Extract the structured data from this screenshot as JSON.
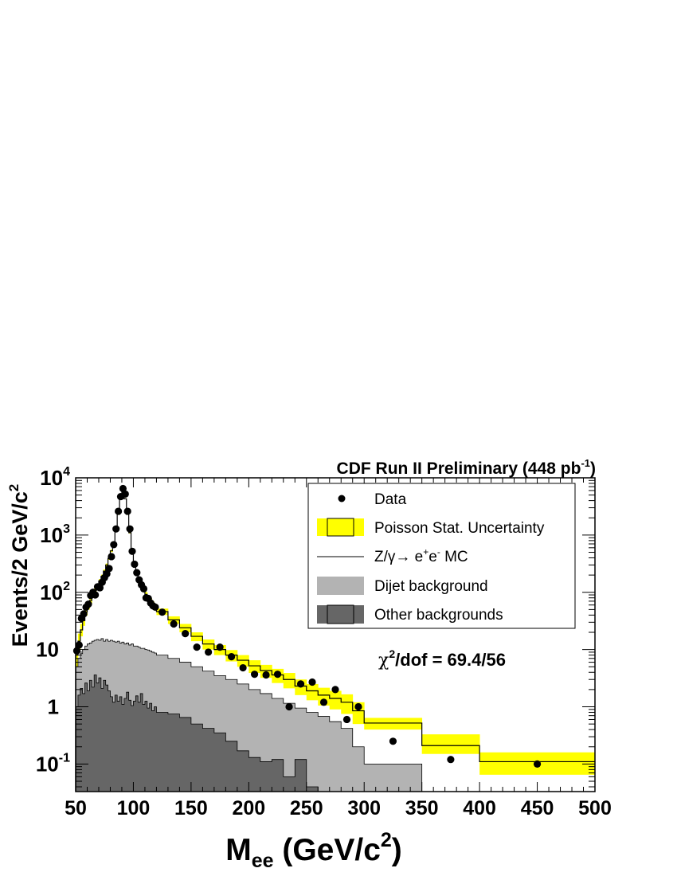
{
  "chart_data": {
    "type": "histogram",
    "title": "CDF Run II Preliminary (448 pb",
    "title_sup": "-1",
    "title_tail": ")",
    "xlabel": {
      "main": "M",
      "sub": "ee",
      "mid": " (GeV/c",
      "sup": "2",
      "tail": ")"
    },
    "ylabel": {
      "main": "Events/2 GeV/c",
      "sup": "2"
    },
    "x_range": [
      50,
      500
    ],
    "y_range": [
      0.033,
      10000
    ],
    "y_scale": "log",
    "x_ticks": [
      {
        "value": 50,
        "label": "50"
      },
      {
        "value": 100,
        "label": "100"
      },
      {
        "value": 150,
        "label": "150"
      },
      {
        "value": 200,
        "label": "200"
      },
      {
        "value": 250,
        "label": "250"
      },
      {
        "value": 300,
        "label": "300"
      },
      {
        "value": 350,
        "label": "350"
      },
      {
        "value": 400,
        "label": "400"
      },
      {
        "value": 450,
        "label": "450"
      },
      {
        "value": 500,
        "label": "500"
      }
    ],
    "y_ticks": [
      {
        "value": 0.1,
        "base": "10",
        "exp": "-1"
      },
      {
        "value": 1,
        "base": "1",
        "exp": ""
      },
      {
        "value": 10,
        "base": "10",
        "exp": ""
      },
      {
        "value": 100,
        "base": "10",
        "exp": "2"
      },
      {
        "value": 1000,
        "base": "10",
        "exp": "3"
      },
      {
        "value": 10000,
        "base": "10",
        "exp": "4"
      }
    ],
    "chi2": {
      "chi": "χ",
      "sup": "2",
      "rest": "/dof = 69.4/56"
    },
    "legend_position": "top-right",
    "legend": [
      {
        "key": "data",
        "label": "Data"
      },
      {
        "key": "stat",
        "label": "Poisson Stat. Uncertainty"
      },
      {
        "key": "mc",
        "label": "Z/γ→ e",
        "sup1": "+",
        "mid": "e",
        "sup2": "-",
        "tail": " MC"
      },
      {
        "key": "dijet",
        "label": "Dijet background"
      },
      {
        "key": "other",
        "label": "Other backgrounds"
      }
    ],
    "colors": {
      "stat": "#ffff00",
      "dijet": "#b3b3b3",
      "other": "#666666",
      "line": "#000000",
      "data": "#000000"
    },
    "mc_bins": [
      [
        50,
        52,
        8
      ],
      [
        52,
        54,
        14
      ],
      [
        54,
        56,
        22
      ],
      [
        56,
        58,
        32
      ],
      [
        58,
        60,
        45
      ],
      [
        60,
        62,
        57
      ],
      [
        62,
        64,
        72
      ],
      [
        64,
        66,
        88
      ],
      [
        66,
        68,
        108
      ],
      [
        68,
        70,
        130
      ],
      [
        70,
        72,
        158
      ],
      [
        72,
        74,
        190
      ],
      [
        74,
        76,
        235
      ],
      [
        76,
        78,
        300
      ],
      [
        78,
        80,
        390
      ],
      [
        80,
        82,
        530
      ],
      [
        82,
        84,
        750
      ],
      [
        84,
        86,
        1250
      ],
      [
        86,
        88,
        2300
      ],
      [
        88,
        90,
        4600
      ],
      [
        90,
        92,
        6200
      ],
      [
        92,
        94,
        4300
      ],
      [
        94,
        96,
        2300
      ],
      [
        96,
        98,
        1100
      ],
      [
        98,
        100,
        560
      ],
      [
        100,
        102,
        330
      ],
      [
        102,
        104,
        225
      ],
      [
        104,
        106,
        170
      ],
      [
        106,
        108,
        135
      ],
      [
        108,
        110,
        110
      ],
      [
        110,
        112,
        92
      ],
      [
        112,
        114,
        80
      ],
      [
        114,
        116,
        70
      ],
      [
        116,
        118,
        62
      ],
      [
        118,
        120,
        56
      ],
      [
        120,
        130,
        46
      ],
      [
        130,
        140,
        33
      ],
      [
        140,
        150,
        24
      ],
      [
        150,
        160,
        17
      ],
      [
        160,
        170,
        12.5
      ],
      [
        170,
        180,
        10
      ],
      [
        180,
        190,
        8
      ],
      [
        190,
        200,
        6.5
      ],
      [
        200,
        210,
        5.2
      ],
      [
        210,
        220,
        4.3
      ],
      [
        220,
        230,
        3.6
      ],
      [
        230,
        240,
        3
      ],
      [
        240,
        250,
        2.3
      ],
      [
        250,
        260,
        1.9
      ],
      [
        260,
        270,
        1.6
      ],
      [
        270,
        280,
        1.4
      ],
      [
        280,
        290,
        1.2
      ],
      [
        290,
        300,
        0.85
      ],
      [
        300,
        350,
        0.52
      ],
      [
        350,
        400,
        0.21
      ],
      [
        400,
        500,
        0.11
      ]
    ],
    "stat_band": [
      [
        50,
        52,
        5,
        12
      ],
      [
        52,
        54,
        10,
        19
      ],
      [
        54,
        56,
        17,
        28
      ],
      [
        56,
        58,
        26,
        39
      ],
      [
        58,
        60,
        39,
        52
      ],
      [
        60,
        62,
        50,
        65
      ],
      [
        62,
        64,
        64,
        80
      ],
      [
        64,
        66,
        80,
        97
      ],
      [
        66,
        68,
        99,
        118
      ],
      [
        68,
        70,
        120,
        141
      ],
      [
        70,
        72,
        146,
        170
      ],
      [
        72,
        74,
        177,
        204
      ],
      [
        74,
        76,
        220,
        251
      ],
      [
        76,
        78,
        283,
        318
      ],
      [
        78,
        80,
        370,
        410
      ],
      [
        80,
        82,
        505,
        555
      ],
      [
        82,
        84,
        720,
        780
      ],
      [
        84,
        86,
        1210,
        1290
      ],
      [
        86,
        88,
        2250,
        2350
      ],
      [
        88,
        90,
        4530,
        4670
      ],
      [
        90,
        92,
        6120,
        6280
      ],
      [
        92,
        94,
        4230,
        4370
      ],
      [
        94,
        96,
        2250,
        2350
      ],
      [
        96,
        98,
        1065,
        1135
      ],
      [
        98,
        100,
        535,
        585
      ],
      [
        100,
        102,
        312,
        348
      ],
      [
        102,
        104,
        210,
        240
      ],
      [
        104,
        106,
        157,
        183
      ],
      [
        106,
        108,
        124,
        146
      ],
      [
        108,
        110,
        100,
        120
      ],
      [
        110,
        112,
        83,
        101
      ],
      [
        112,
        114,
        72,
        88
      ],
      [
        114,
        116,
        62,
        78
      ],
      [
        116,
        118,
        55,
        69
      ],
      [
        118,
        120,
        49,
        63
      ],
      [
        120,
        130,
        40,
        52
      ],
      [
        130,
        140,
        28,
        38
      ],
      [
        140,
        150,
        20,
        28
      ],
      [
        150,
        160,
        14,
        20
      ],
      [
        160,
        170,
        10,
        15
      ],
      [
        170,
        180,
        8,
        12
      ],
      [
        180,
        190,
        6.2,
        9.8
      ],
      [
        190,
        200,
        5,
        8
      ],
      [
        200,
        210,
        3.9,
        6.5
      ],
      [
        210,
        220,
        3.2,
        5.4
      ],
      [
        220,
        230,
        2.6,
        4.6
      ],
      [
        230,
        240,
        2.1,
        3.9
      ],
      [
        240,
        250,
        1.6,
        3
      ],
      [
        250,
        260,
        1.3,
        2.5
      ],
      [
        260,
        270,
        1.05,
        2.15
      ],
      [
        270,
        280,
        0.9,
        1.9
      ],
      [
        280,
        290,
        0.75,
        1.65
      ],
      [
        290,
        300,
        0.5,
        1.2
      ],
      [
        300,
        350,
        0.4,
        0.64
      ],
      [
        350,
        400,
        0.15,
        0.33
      ],
      [
        400,
        500,
        0.065,
        0.16
      ]
    ],
    "dijet_bins": [
      [
        50,
        52,
        5
      ],
      [
        52,
        54,
        7
      ],
      [
        54,
        56,
        8.5
      ],
      [
        56,
        58,
        10
      ],
      [
        58,
        60,
        11.5
      ],
      [
        60,
        62,
        12.5
      ],
      [
        62,
        64,
        13
      ],
      [
        64,
        66,
        14
      ],
      [
        66,
        68,
        14.5
      ],
      [
        68,
        70,
        15
      ],
      [
        70,
        72,
        14.5
      ],
      [
        72,
        74,
        15.5
      ],
      [
        74,
        76,
        14
      ],
      [
        76,
        78,
        15
      ],
      [
        78,
        80,
        14
      ],
      [
        80,
        82,
        14.5
      ],
      [
        82,
        84,
        14
      ],
      [
        84,
        86,
        13.5
      ],
      [
        86,
        88,
        14
      ],
      [
        88,
        90,
        13
      ],
      [
        90,
        92,
        13.5
      ],
      [
        92,
        94,
        12.5
      ],
      [
        94,
        96,
        13
      ],
      [
        96,
        98,
        12
      ],
      [
        98,
        100,
        12.5
      ],
      [
        100,
        102,
        11.5
      ],
      [
        102,
        104,
        11.5
      ],
      [
        104,
        106,
        11
      ],
      [
        106,
        108,
        10.5
      ],
      [
        108,
        110,
        10.5
      ],
      [
        110,
        112,
        10
      ],
      [
        112,
        114,
        9.8
      ],
      [
        114,
        116,
        9.4
      ],
      [
        116,
        118,
        9
      ],
      [
        118,
        120,
        8.7
      ],
      [
        120,
        130,
        8
      ],
      [
        130,
        140,
        7
      ],
      [
        140,
        150,
        6
      ],
      [
        150,
        160,
        5
      ],
      [
        160,
        170,
        4.2
      ],
      [
        170,
        180,
        3.5
      ],
      [
        180,
        190,
        3
      ],
      [
        190,
        200,
        2.5
      ],
      [
        200,
        210,
        2
      ],
      [
        210,
        220,
        1.7
      ],
      [
        220,
        230,
        1.4
      ],
      [
        230,
        240,
        1.15
      ],
      [
        240,
        250,
        0.95
      ],
      [
        250,
        260,
        0.8
      ],
      [
        260,
        270,
        0.68
      ],
      [
        270,
        280,
        0.55
      ],
      [
        280,
        290,
        0.42
      ],
      [
        290,
        300,
        0.2
      ],
      [
        300,
        350,
        0.1
      ],
      [
        350,
        400,
        0.03
      ],
      [
        400,
        500,
        0.03
      ]
    ],
    "other_bins": [
      [
        50,
        52,
        1
      ],
      [
        52,
        54,
        1.6
      ],
      [
        54,
        56,
        2.1
      ],
      [
        56,
        58,
        1.7
      ],
      [
        58,
        60,
        2.6
      ],
      [
        60,
        62,
        1.9
      ],
      [
        62,
        64,
        2.9
      ],
      [
        64,
        66,
        2.2
      ],
      [
        66,
        68,
        3.6
      ],
      [
        68,
        70,
        2.6
      ],
      [
        70,
        72,
        3.2
      ],
      [
        72,
        74,
        2.1
      ],
      [
        74,
        76,
        2.9
      ],
      [
        76,
        78,
        2.4
      ],
      [
        78,
        80,
        1.9
      ],
      [
        80,
        82,
        1.5
      ],
      [
        82,
        84,
        1.2
      ],
      [
        84,
        86,
        1.6
      ],
      [
        86,
        88,
        1.25
      ],
      [
        88,
        90,
        1.5
      ],
      [
        90,
        92,
        1.1
      ],
      [
        92,
        94,
        1.4
      ],
      [
        94,
        96,
        1.8
      ],
      [
        96,
        98,
        1.3
      ],
      [
        98,
        100,
        1.05
      ],
      [
        100,
        102,
        1.25
      ],
      [
        102,
        104,
        1.55
      ],
      [
        104,
        106,
        1.2
      ],
      [
        106,
        108,
        1.7
      ],
      [
        108,
        110,
        1.1
      ],
      [
        110,
        112,
        1.25
      ],
      [
        112,
        114,
        0.95
      ],
      [
        114,
        116,
        1.15
      ],
      [
        116,
        118,
        0.85
      ],
      [
        118,
        120,
        1
      ],
      [
        120,
        130,
        0.8
      ],
      [
        130,
        140,
        0.75
      ],
      [
        140,
        150,
        0.65
      ],
      [
        150,
        160,
        0.5
      ],
      [
        160,
        170,
        0.42
      ],
      [
        170,
        180,
        0.35
      ],
      [
        180,
        190,
        0.25
      ],
      [
        190,
        200,
        0.17
      ],
      [
        200,
        210,
        0.13
      ],
      [
        210,
        220,
        0.11
      ],
      [
        220,
        230,
        0.12
      ],
      [
        230,
        240,
        0.06
      ],
      [
        240,
        250,
        0.12
      ],
      [
        250,
        260,
        0.04
      ],
      [
        260,
        400,
        0.03
      ],
      [
        400,
        500,
        0.03
      ]
    ],
    "data_points": [
      [
        51,
        9.5
      ],
      [
        53,
        12
      ],
      [
        55,
        35
      ],
      [
        57,
        42
      ],
      [
        59,
        55
      ],
      [
        61,
        62
      ],
      [
        63,
        88
      ],
      [
        65,
        100
      ],
      [
        67,
        90
      ],
      [
        69,
        125
      ],
      [
        71,
        120
      ],
      [
        73,
        150
      ],
      [
        75,
        180
      ],
      [
        77,
        210
      ],
      [
        79,
        260
      ],
      [
        81,
        420
      ],
      [
        83,
        680
      ],
      [
        85,
        1280
      ],
      [
        87,
        2600
      ],
      [
        89,
        4700
      ],
      [
        91,
        6500
      ],
      [
        93,
        5200
      ],
      [
        95,
        2600
      ],
      [
        97,
        1280
      ],
      [
        99,
        520
      ],
      [
        101,
        310
      ],
      [
        103,
        220
      ],
      [
        105,
        165
      ],
      [
        107,
        135
      ],
      [
        109,
        115
      ],
      [
        111,
        80
      ],
      [
        113,
        78
      ],
      [
        115,
        65
      ],
      [
        117,
        58
      ],
      [
        119,
        55
      ],
      [
        125,
        45
      ],
      [
        135,
        28
      ],
      [
        145,
        19
      ],
      [
        155,
        11
      ],
      [
        165,
        9
      ],
      [
        175,
        11
      ],
      [
        185,
        7.5
      ],
      [
        195,
        4.8
      ],
      [
        205,
        3.7
      ],
      [
        215,
        3.6
      ],
      [
        225,
        3.7
      ],
      [
        235,
        1
      ],
      [
        245,
        2.5
      ],
      [
        255,
        2.7
      ],
      [
        265,
        1.2
      ],
      [
        275,
        2
      ],
      [
        285,
        0.6
      ],
      [
        295,
        1
      ],
      [
        325,
        0.25
      ],
      [
        375,
        0.12
      ],
      [
        450,
        0.1
      ]
    ]
  }
}
